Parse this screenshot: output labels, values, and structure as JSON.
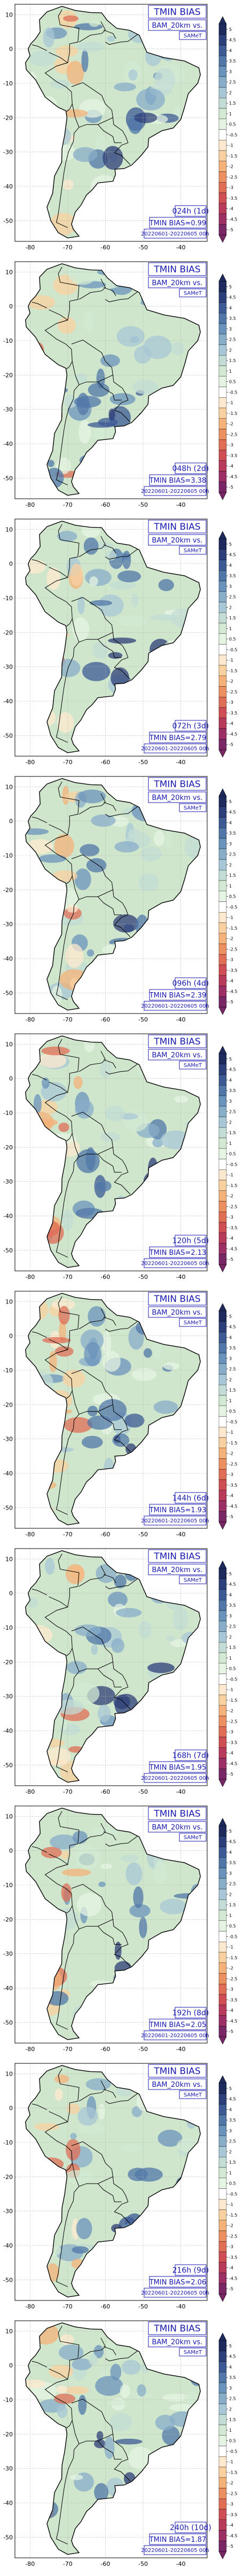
{
  "panels": [
    {
      "lead": "024h (1d)",
      "bias": "TMIN BIAS=0.99"
    },
    {
      "lead": "048h (2d)",
      "bias": "TMIN BIAS=3.38"
    },
    {
      "lead": "072h (3d)",
      "bias": "TMIN BIAS=2.79"
    },
    {
      "lead": "096h (4d)",
      "bias": "TMIN BIAS=2.39"
    },
    {
      "lead": "120h (5d)",
      "bias": "TMIN BIAS=2.13"
    },
    {
      "lead": "144h (6d)",
      "bias": "TMIN BIAS=1.93"
    },
    {
      "lead": "168h (7d)",
      "bias": "TMIN BIAS=1.95"
    },
    {
      "lead": "192h (8d)",
      "bias": "TMIN BIAS=2.05"
    },
    {
      "lead": "216h (9d)",
      "bias": "TMIN BIAS=2.06"
    },
    {
      "lead": "240h (10d)",
      "bias": "TMIN BIAS=1.87"
    }
  ],
  "common": {
    "title": "TMIN BIAS",
    "model": "BAM_20km vs.",
    "reference": "SAMeT",
    "period": "20220601-20220605 00h"
  },
  "axes": {
    "lon_ticks": [
      "-80",
      "-70",
      "-60",
      "-50",
      "-40"
    ],
    "lat_ticks": [
      "10",
      "0",
      "-10",
      "-20",
      "-30",
      "-40",
      "-50"
    ]
  },
  "colorbar": {
    "labels": [
      "5",
      "4.5",
      "4",
      "3.5",
      "3",
      "2.5",
      "2",
      "1.5",
      "1",
      "0.5",
      "-0.5",
      "-1",
      "-1.5",
      "-2",
      "-2.5",
      "-3",
      "-3.5",
      "-4",
      "-4.5",
      "-5"
    ],
    "colors": [
      "#1f2a5c",
      "#2d3f78",
      "#3e5a94",
      "#5077a8",
      "#6a93bb",
      "#88adc9",
      "#a8c7d6",
      "#c3dcd6",
      "#d3e9d3",
      "#e6f4e3",
      "#ffffff",
      "#fde9cf",
      "#f9d0a0",
      "#f4b27a",
      "#ec8f61",
      "#e06d55",
      "#cf4e55",
      "#b83a5b",
      "#9c2f63",
      "#7a2766"
    ],
    "colors_note_extend": "both"
  },
  "colors": {
    "title_text": "#1a1ab0",
    "box_border": "#1a1ab0",
    "land_green": "#cfe6cc"
  }
}
